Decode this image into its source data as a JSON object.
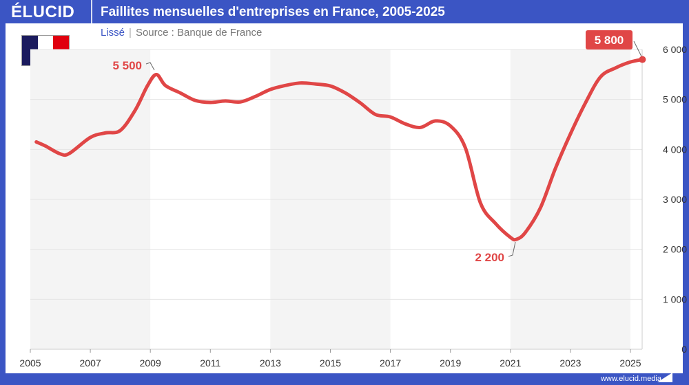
{
  "header": {
    "logo": "ÉLUCID",
    "title": "Faillites mensuelles d'entreprises en France, 2005-2025"
  },
  "subtitle": {
    "mode": "Lissé",
    "separator": "|",
    "source": "Source : Banque de France"
  },
  "flag": {
    "colors": [
      "#1b1b5e",
      "#ffffff",
      "#e0000f"
    ]
  },
  "footer": {
    "url": "www.elucid.media"
  },
  "colors": {
    "brand": "#3b55c4",
    "line": "#e04646",
    "band": "#f4f4f4"
  },
  "chart_data": {
    "type": "line",
    "title": "Faillites mensuelles d'entreprises en France, 2005-2025",
    "xlim": [
      2005,
      2025.4
    ],
    "ylim": [
      0,
      6000
    ],
    "x_ticks": [
      2005,
      2007,
      2009,
      2011,
      2013,
      2015,
      2017,
      2019,
      2021,
      2023,
      2025
    ],
    "x_tick_labels": [
      "2005",
      "2007",
      "2009",
      "2011",
      "2013",
      "2015",
      "2017",
      "2019",
      "2021",
      "2023",
      "2025"
    ],
    "y_ticks": [
      0,
      1000,
      2000,
      3000,
      4000,
      5000,
      6000
    ],
    "y_tick_labels": [
      "0",
      "1 000",
      "2 000",
      "3 000",
      "4 000",
      "5 000",
      "6 000"
    ],
    "y_axis_side": "right",
    "grid": true,
    "shaded_bands": [
      [
        2005,
        2009
      ],
      [
        2013,
        2017
      ],
      [
        2021,
        2025
      ]
    ],
    "series": [
      {
        "x": [
          2005.2,
          2005.5,
          2006,
          2006.3,
          2007,
          2007.5,
          2008,
          2008.5,
          2008.9,
          2009.2,
          2009.5,
          2010,
          2010.5,
          2011,
          2011.5,
          2012,
          2012.5,
          2013,
          2013.5,
          2014,
          2014.5,
          2015,
          2015.5,
          2016,
          2016.5,
          2017,
          2017.5,
          2018,
          2018.5,
          2019,
          2019.5,
          2020,
          2020.5,
          2021,
          2021.2,
          2021.5,
          2022,
          2022.5,
          2023,
          2023.5,
          2024,
          2024.5,
          2025,
          2025.4
        ],
        "y": [
          4150,
          4070,
          3910,
          3920,
          4240,
          4330,
          4380,
          4790,
          5270,
          5500,
          5280,
          5130,
          4980,
          4940,
          4970,
          4950,
          5060,
          5200,
          5280,
          5330,
          5310,
          5270,
          5130,
          4930,
          4700,
          4650,
          4510,
          4440,
          4570,
          4470,
          4030,
          2930,
          2520,
          2240,
          2200,
          2340,
          2830,
          3620,
          4310,
          4930,
          5450,
          5630,
          5750,
          5800
        ]
      }
    ],
    "annotations": [
      {
        "label": "5 500",
        "x": 2009.2,
        "y": 5500
      },
      {
        "label": "2 200",
        "x": 2021.2,
        "y": 2200
      },
      {
        "label": "5 800",
        "x": 2025.4,
        "y": 5800
      }
    ]
  }
}
